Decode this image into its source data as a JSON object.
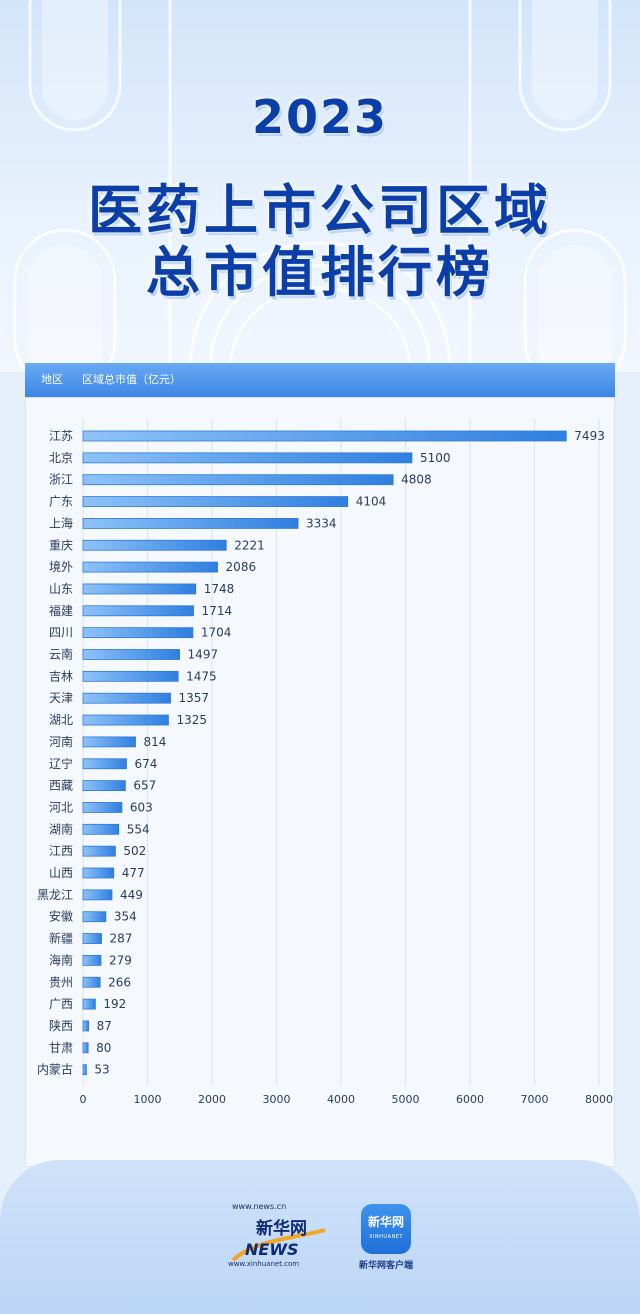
{
  "title": {
    "year": "2023",
    "line2": "医药上市公司区域",
    "line3": "总市值排行榜"
  },
  "table_header": {
    "region_label": "地区",
    "value_label": "区域总市值（亿元）"
  },
  "chart_data": {
    "type": "bar",
    "orientation": "horizontal",
    "title": "2023 医药上市公司区域总市值排行榜",
    "xlabel": "",
    "ylabel": "",
    "xlim": [
      0,
      8000
    ],
    "xticks": [
      0,
      1000,
      2000,
      3000,
      4000,
      5000,
      6000,
      7000,
      8000
    ],
    "grid": true,
    "categories": [
      "江苏",
      "北京",
      "浙江",
      "广东",
      "上海",
      "重庆",
      "境外",
      "山东",
      "福建",
      "四川",
      "云南",
      "吉林",
      "天津",
      "湖北",
      "河南",
      "辽宁",
      "西藏",
      "河北",
      "湖南",
      "江西",
      "山西",
      "黑龙江",
      "安徽",
      "新疆",
      "海南",
      "贵州",
      "广西",
      "陕西",
      "甘肃",
      "内蒙古"
    ],
    "values": [
      7493,
      5100,
      4808,
      4104,
      3334,
      2221,
      2086,
      1748,
      1714,
      1704,
      1497,
      1475,
      1357,
      1325,
      814,
      674,
      657,
      603,
      554,
      502,
      477,
      449,
      354,
      287,
      279,
      266,
      192,
      87,
      80,
      53
    ]
  },
  "footer": {
    "news_url_top": "www.news.cn",
    "news_name": "新华网",
    "news_word": "NEWS",
    "news_url_bottom": "www.xinhuanet.com",
    "app_icon_name": "新华网",
    "app_icon_sub": "XINHUANET",
    "app_caption": "新华网客户端"
  },
  "colors": {
    "title": "#0b3ea8",
    "bar_fill_start": "#8ec3f8",
    "bar_fill_end": "#2f7fe0",
    "bar_stroke": "#2f78da",
    "label_text": "#2a3d5c",
    "header_bar": "#3c86e6"
  }
}
